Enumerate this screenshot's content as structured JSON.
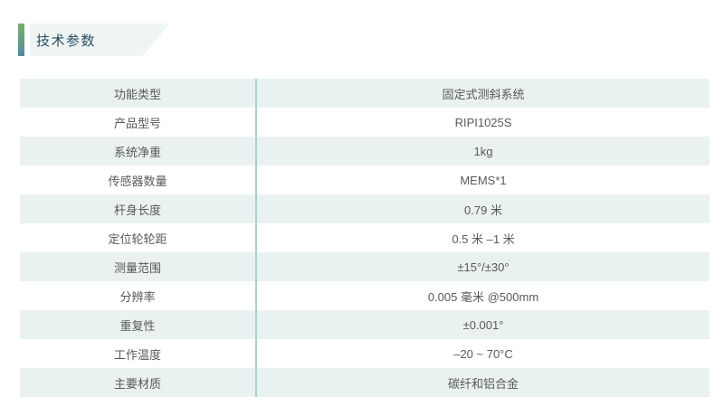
{
  "header": {
    "title": "技术参数"
  },
  "table": {
    "rows": [
      {
        "label": "功能类型",
        "value": "固定式测斜系统"
      },
      {
        "label": "产品型号",
        "value": "RIPI1025S"
      },
      {
        "label": "系统净重",
        "value": "1kg"
      },
      {
        "label": "传感器数量",
        "value": "MEMS*1"
      },
      {
        "label": "杆身长度",
        "value": "0.79 米"
      },
      {
        "label": "定位轮轮距",
        "value": "0.5 米 –1 米"
      },
      {
        "label": "测量范围",
        "value": "±15°/±30°"
      },
      {
        "label": "分辨率",
        "value": "0.005 毫米 @500mm"
      },
      {
        "label": "重复性",
        "value": "±0.001°"
      },
      {
        "label": "工作温度",
        "value": "–20 ~ 70°C"
      },
      {
        "label": "主要材质",
        "value": "碳纤和铝合金"
      }
    ]
  },
  "colors": {
    "accent_green": "#7cac68",
    "accent_blue": "#4f8ca3",
    "banner_bg": "#eff5f5",
    "row_alt_bg": "#e9f2f1",
    "divider": "#a6d2d1",
    "title_text": "#2b4a5c",
    "cell_text": "#595959"
  }
}
